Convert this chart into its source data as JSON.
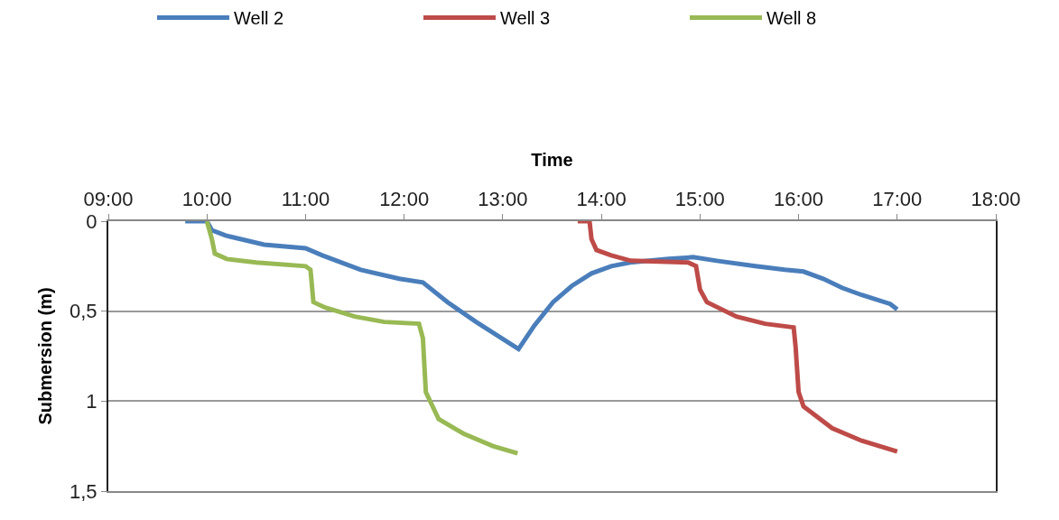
{
  "chart_data": {
    "type": "line",
    "xlabel": "Time",
    "ylabel": "Submersion (m)",
    "xlim": [
      9,
      18
    ],
    "xticks": [
      {
        "value": 9,
        "label": "09:00"
      },
      {
        "value": 10,
        "label": "10:00"
      },
      {
        "value": 11,
        "label": "11:00"
      },
      {
        "value": 12,
        "label": "12:00"
      },
      {
        "value": 13,
        "label": "13:00"
      },
      {
        "value": 14,
        "label": "14:00"
      },
      {
        "value": 15,
        "label": "15:00"
      },
      {
        "value": 16,
        "label": "16:00"
      },
      {
        "value": 17,
        "label": "17:00"
      },
      {
        "value": 18,
        "label": "18:00"
      }
    ],
    "ylim": [
      1.5,
      0
    ],
    "yticks": [
      {
        "value": 0,
        "label": "0"
      },
      {
        "value": 0.5,
        "label": "0,5"
      },
      {
        "value": 1,
        "label": "1"
      },
      {
        "value": 1.5,
        "label": "1,5"
      }
    ],
    "grid": "y",
    "legend": "top",
    "marker": "none",
    "line_style": "solid",
    "series": [
      {
        "name": "Well 2",
        "color": "#4a7ebb",
        "x": [
          9.78,
          10.0,
          10.05,
          10.19,
          10.58,
          11.0,
          11.17,
          11.56,
          11.95,
          12.19,
          12.44,
          12.73,
          13.16,
          13.32,
          13.51,
          13.7,
          13.9,
          14.1,
          14.29,
          14.68,
          14.93,
          15.17,
          15.56,
          15.86,
          16.05,
          16.25,
          16.44,
          16.64,
          16.93,
          17.0
        ],
        "values": [
          0.0,
          0.0,
          0.05,
          0.08,
          0.13,
          0.15,
          0.19,
          0.27,
          0.32,
          0.34,
          0.45,
          0.56,
          0.71,
          0.58,
          0.45,
          0.36,
          0.29,
          0.25,
          0.23,
          0.21,
          0.2,
          0.22,
          0.25,
          0.27,
          0.28,
          0.32,
          0.37,
          0.41,
          0.46,
          0.49
        ]
      },
      {
        "name": "Well 3",
        "color": "#be4b48",
        "x": [
          13.76,
          13.88,
          13.9,
          13.95,
          14.1,
          14.3,
          14.88,
          14.96,
          15.0,
          15.07,
          15.37,
          15.66,
          15.95,
          15.97,
          16.0,
          16.05,
          16.34,
          16.64,
          17.0
        ],
        "values": [
          0.0,
          0.0,
          0.1,
          0.16,
          0.19,
          0.22,
          0.23,
          0.25,
          0.38,
          0.45,
          0.53,
          0.57,
          0.59,
          0.7,
          0.95,
          1.03,
          1.15,
          1.22,
          1.28
        ]
      },
      {
        "name": "Well 8",
        "color": "#98b954",
        "x": [
          10.0,
          10.05,
          10.08,
          10.2,
          10.5,
          11.0,
          11.05,
          11.08,
          11.2,
          11.5,
          11.8,
          12.15,
          12.19,
          12.22,
          12.35,
          12.6,
          12.9,
          13.15
        ],
        "values": [
          0.0,
          0.1,
          0.18,
          0.21,
          0.23,
          0.25,
          0.27,
          0.45,
          0.48,
          0.53,
          0.56,
          0.57,
          0.65,
          0.95,
          1.1,
          1.18,
          1.25,
          1.29
        ]
      }
    ]
  }
}
